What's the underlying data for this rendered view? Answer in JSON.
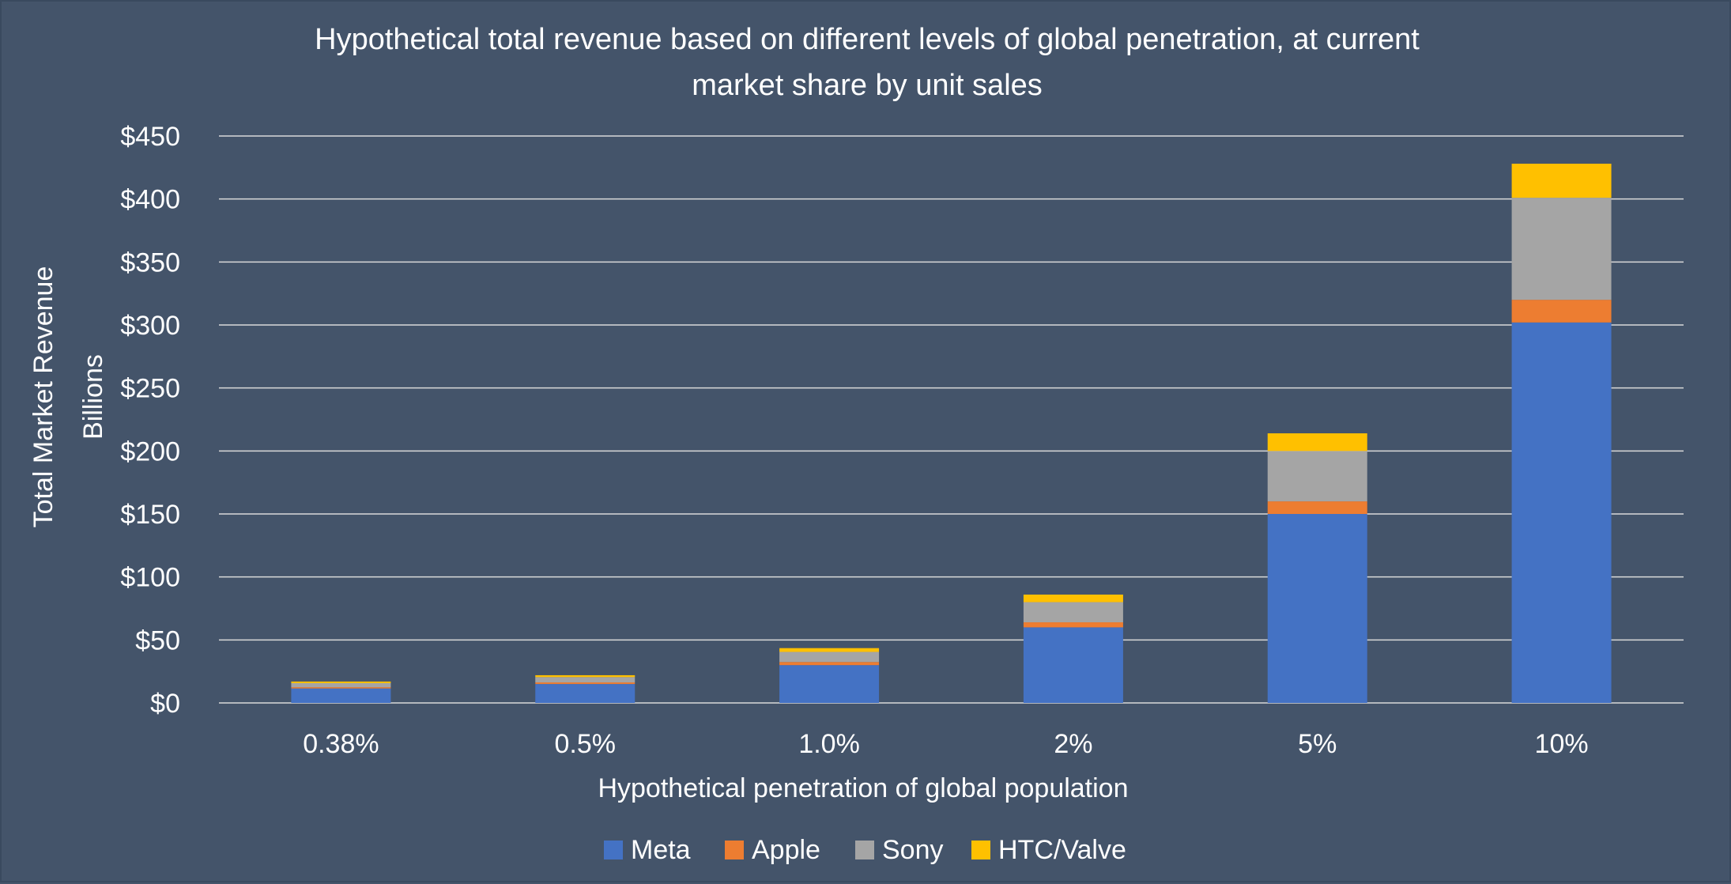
{
  "chart_data": {
    "type": "bar",
    "stacked": true,
    "title_lines": [
      "Hypothetical total revenue based on different levels of global penetration, at current",
      "market share by unit sales"
    ],
    "xlabel": "Hypothetical penetration of global population",
    "ylabel_lines": [
      "Total Market Revenue",
      "Billions"
    ],
    "ylim": [
      0,
      450
    ],
    "yticks": [
      0,
      50,
      100,
      150,
      200,
      250,
      300,
      350,
      400,
      450
    ],
    "ytick_labels": [
      "$0",
      "$50",
      "$100",
      "$150",
      "$200",
      "$250",
      "$300",
      "$350",
      "$400",
      "$450"
    ],
    "categories": [
      "0.38%",
      "0.5%",
      "1.0%",
      "2%",
      "5%",
      "10%"
    ],
    "series": [
      {
        "name": "Meta",
        "color": "#4472c4",
        "values": [
          11.5,
          15,
          30,
          60,
          150,
          302
        ]
      },
      {
        "name": "Apple",
        "color": "#ed7d31",
        "values": [
          1,
          1.3,
          2.5,
          4,
          10,
          18
        ]
      },
      {
        "name": "Sony",
        "color": "#a5a5a5",
        "values": [
          3.2,
          4.2,
          8,
          16,
          40,
          81
        ]
      },
      {
        "name": "HTC/Valve",
        "color": "#ffc000",
        "values": [
          1.3,
          1.5,
          3,
          6,
          14,
          27
        ]
      }
    ],
    "grid": true,
    "legend_position": "bottom"
  }
}
